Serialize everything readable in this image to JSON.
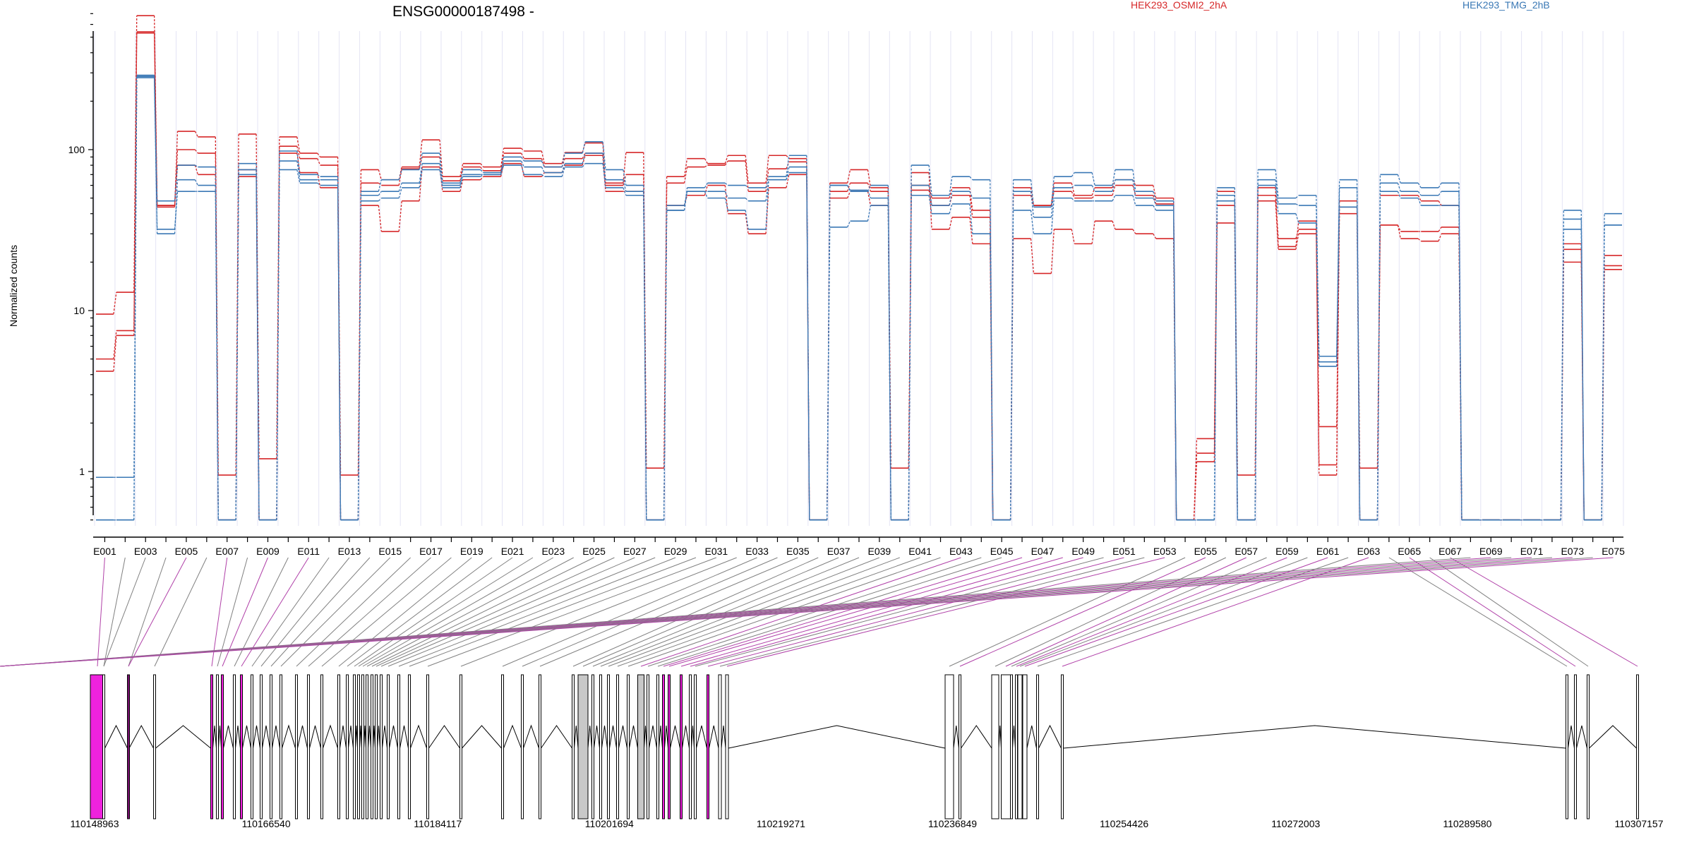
{
  "chart_data": {
    "type": "line",
    "title": "ENSG00000187498 -",
    "ylabel": "Normalized counts",
    "yscale": "log",
    "ylim": [
      0.5,
      700
    ],
    "yticks": [
      {
        "value": 1,
        "label": "1"
      },
      {
        "value": 10,
        "label": "10"
      },
      {
        "value": 100,
        "label": "100"
      }
    ],
    "legend": [
      {
        "name": "HEK293_OSMI2_2hA",
        "color": "#d62728"
      },
      {
        "name": "HEK293_TMG_2hB",
        "color": "#3a78b5"
      }
    ],
    "categories": [
      "E001",
      "E002",
      "E003",
      "E004",
      "E005",
      "E006",
      "E007",
      "E008",
      "E009",
      "E010",
      "E011",
      "E012",
      "E013",
      "E014",
      "E015",
      "E016",
      "E017",
      "E018",
      "E019",
      "E020",
      "E021",
      "E022",
      "E023",
      "E024",
      "E025",
      "E026",
      "E027",
      "E028",
      "E029",
      "E030",
      "E031",
      "E032",
      "E033",
      "E034",
      "E035",
      "E036",
      "E037",
      "E038",
      "E039",
      "E040",
      "E041",
      "E042",
      "E043",
      "E044",
      "E045",
      "E046",
      "E047",
      "E048",
      "E049",
      "E050",
      "E051",
      "E052",
      "E053",
      "E054",
      "E055",
      "E056",
      "E057",
      "E058",
      "E059",
      "E060",
      "E061",
      "E062",
      "E063",
      "E064",
      "E065",
      "E066",
      "E067",
      "E068",
      "E069",
      "E070",
      "E071",
      "E072",
      "E073",
      "E074",
      "E075"
    ],
    "tick_label_every": 2,
    "series": [
      {
        "group": "HEK293_OSMI2_2hA",
        "color": "#d62728",
        "values": [
          9.5,
          13,
          680,
          44,
          130,
          120,
          0.95,
          125,
          1.2,
          120,
          95,
          90,
          0.95,
          75,
          65,
          78,
          115,
          68,
          82,
          78,
          102,
          98,
          82,
          96,
          110,
          62,
          96,
          1.05,
          68,
          88,
          82,
          92,
          62,
          92,
          88,
          0.5,
          62,
          75,
          58,
          1.05,
          60,
          50,
          58,
          42,
          0.5,
          58,
          45,
          62,
          52,
          58,
          65,
          60,
          50,
          0.5,
          1.6,
          55,
          0.95,
          58,
          25,
          36,
          0.95,
          48,
          1.05,
          34,
          31,
          31,
          33,
          0.5,
          0.5,
          0.5,
          0.5,
          0.5,
          26,
          0.5,
          22
        ]
      },
      {
        "group": "HEK293_OSMI2_2hA",
        "color": "#d62728",
        "values": [
          5,
          7.5,
          540,
          45,
          100,
          95,
          0.5,
          75,
          0.5,
          105,
          88,
          80,
          0.5,
          62,
          60,
          76,
          90,
          64,
          78,
          74,
          95,
          88,
          78,
          88,
          95,
          60,
          70,
          0.5,
          62,
          78,
          80,
          85,
          55,
          76,
          84,
          0.5,
          55,
          62,
          55,
          0.5,
          56,
          45,
          52,
          38,
          0.5,
          52,
          45,
          55,
          50,
          52,
          60,
          52,
          46,
          0.5,
          1.3,
          45,
          0.5,
          52,
          28,
          32,
          1.9,
          44,
          0.5,
          52,
          52,
          48,
          45,
          0.5,
          0.5,
          0.5,
          0.5,
          0.5,
          24,
          0.5,
          19
        ]
      },
      {
        "group": "HEK293_OSMI2_2hA",
        "color": "#d62728",
        "values": [
          4.2,
          7,
          530,
          45,
          80,
          70,
          0.5,
          68,
          0.5,
          95,
          72,
          58,
          0.5,
          45,
          31,
          48,
          78,
          55,
          65,
          68,
          82,
          68,
          72,
          80,
          92,
          55,
          55,
          0.5,
          45,
          52,
          60,
          40,
          30,
          58,
          70,
          0.5,
          50,
          55,
          45,
          0.5,
          72,
          32,
          38,
          26,
          0.5,
          28,
          17,
          32,
          26,
          36,
          32,
          30,
          28,
          0.5,
          1.15,
          35,
          0.5,
          48,
          24,
          30,
          1.1,
          40,
          0.5,
          34,
          28,
          27,
          30,
          0.5,
          0.5,
          0.5,
          0.5,
          0.5,
          20,
          0.5,
          18
        ]
      },
      {
        "group": "HEK293_TMG_2hB",
        "color": "#3a78b5",
        "values": [
          0.5,
          0.5,
          290,
          48,
          80,
          78,
          0.5,
          82,
          0.5,
          98,
          70,
          68,
          0.5,
          55,
          65,
          75,
          95,
          62,
          75,
          72,
          90,
          85,
          78,
          95,
          112,
          75,
          60,
          0.5,
          42,
          58,
          62,
          60,
          58,
          68,
          92,
          0.5,
          60,
          55,
          60,
          0.5,
          80,
          52,
          68,
          65,
          0.5,
          65,
          44,
          68,
          72,
          60,
          75,
          55,
          48,
          0.5,
          0.5,
          58,
          0.5,
          75,
          50,
          52,
          5.2,
          65,
          0.5,
          70,
          62,
          58,
          62,
          0.5,
          0.5,
          0.5,
          0.5,
          0.5,
          42,
          0.5,
          40
        ]
      },
      {
        "group": "HEK293_TMG_2hB",
        "color": "#3a78b5",
        "values": [
          0.92,
          0.92,
          280,
          32,
          55,
          55,
          0.5,
          70,
          0.5,
          75,
          62,
          60,
          0.5,
          48,
          50,
          58,
          75,
          58,
          68,
          70,
          80,
          70,
          68,
          78,
          82,
          58,
          52,
          0.5,
          42,
          55,
          50,
          42,
          32,
          65,
          72,
          0.5,
          33,
          36,
          45,
          0.5,
          52,
          40,
          46,
          30,
          0.5,
          42,
          30,
          50,
          48,
          48,
          52,
          45,
          42,
          0.5,
          0.5,
          48,
          0.5,
          60,
          40,
          35,
          4.5,
          44,
          0.5,
          55,
          50,
          45,
          45,
          0.5,
          0.5,
          0.5,
          0.5,
          0.5,
          32,
          0.5,
          34
        ]
      },
      {
        "group": "HEK293_TMG_2hB",
        "color": "#3a78b5",
        "values": [
          0.5,
          0.5,
          285,
          30,
          65,
          60,
          0.5,
          75,
          0.5,
          85,
          65,
          65,
          0.5,
          52,
          55,
          62,
          82,
          60,
          70,
          70,
          85,
          78,
          72,
          82,
          95,
          65,
          55,
          0.5,
          45,
          55,
          55,
          50,
          48,
          65,
          78,
          0.5,
          60,
          56,
          50,
          0.5,
          60,
          45,
          55,
          50,
          0.5,
          55,
          38,
          58,
          60,
          55,
          65,
          50,
          45,
          0.5,
          0.5,
          52,
          0.5,
          65,
          46,
          45,
          4.8,
          58,
          0.5,
          62,
          55,
          52,
          55,
          0.5,
          0.5,
          0.5,
          0.5,
          0.5,
          37,
          0.5,
          34
        ]
      }
    ],
    "gene_model": {
      "coordinate_ticks": [
        "110148963",
        "110166540",
        "110184117",
        "110201694",
        "110219271",
        "110236849",
        "110254426",
        "110272003",
        "110289580",
        "110307157"
      ],
      "genomic_range": [
        110148963,
        110307157
      ]
    }
  }
}
